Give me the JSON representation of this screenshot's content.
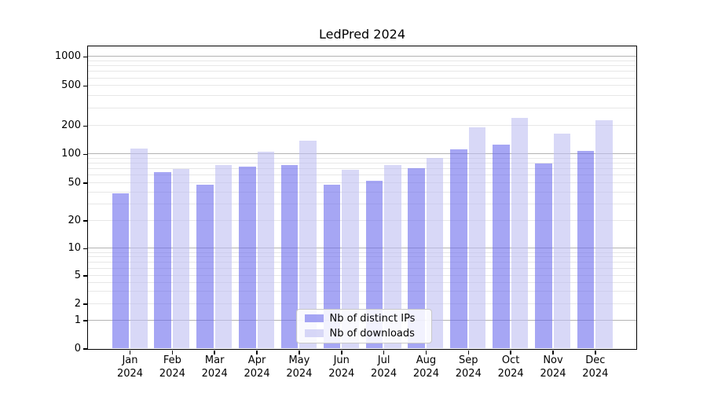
{
  "chart_data": {
    "type": "bar",
    "title": "LedPred 2024",
    "categories": [
      "Jan 2024",
      "Feb 2024",
      "Mar 2024",
      "Apr 2024",
      "May 2024",
      "Jun 2024",
      "Jul 2024",
      "Aug 2024",
      "Sep 2024",
      "Oct 2024",
      "Nov 2024",
      "Dec 2024"
    ],
    "series": [
      {
        "name": "Nb of distinct IPs",
        "color": "#6b6bed",
        "values": [
          39,
          64,
          48,
          73,
          77,
          48,
          52,
          71,
          111,
          126,
          79,
          108
        ]
      },
      {
        "name": "Nb of downloads",
        "color": "#bebef2",
        "values": [
          115,
          70,
          76,
          105,
          137,
          68,
          77,
          90,
          190,
          240,
          165,
          225
        ]
      }
    ],
    "bar_opacity": 0.6,
    "y_scale": "symlog",
    "y_tick_values": [
      0,
      1,
      2,
      5,
      10,
      20,
      50,
      100,
      200,
      500,
      1000
    ],
    "y_tick_labels": [
      "0",
      "1",
      "2",
      "5",
      "10",
      "20",
      "50",
      "100",
      "200",
      "500",
      "1000"
    ],
    "major_grid_values": [
      1,
      10,
      100,
      1000
    ],
    "ylim": [
      0,
      1300
    ],
    "xlabel": "",
    "ylabel": "",
    "grid": "on",
    "legend_position": "lower center"
  },
  "colors": {
    "background": "#ffffff",
    "text": "#000000",
    "spine": "#000000",
    "major_grid": "#b3b3b3",
    "minor_grid": "#e7e7e7",
    "legend_border": "#c8c8c8"
  }
}
